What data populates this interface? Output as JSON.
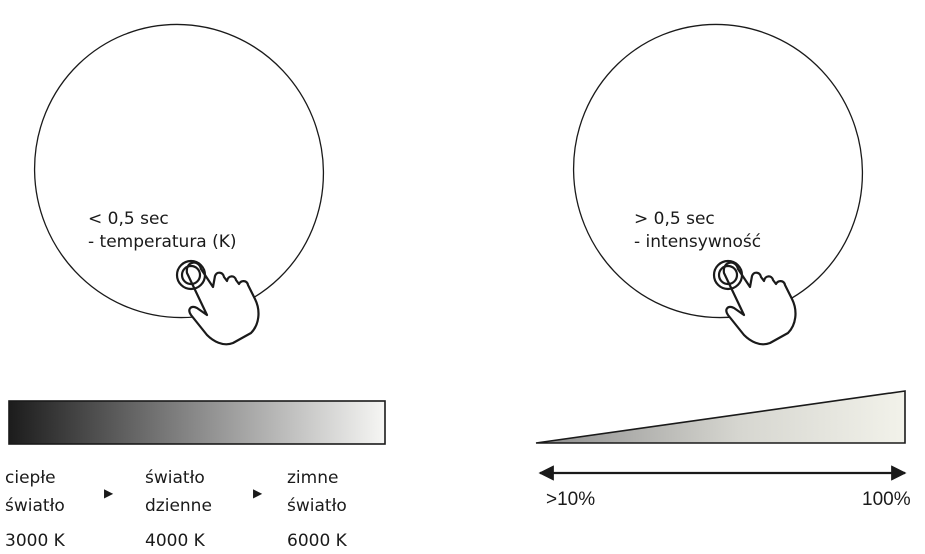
{
  "left_panel": {
    "timing": "< 0,5 sec",
    "function": "- temperatura (K)"
  },
  "right_panel": {
    "timing": "> 0,5 sec",
    "function": "- intensywność"
  },
  "temperature_scale": {
    "gradient_colors": [
      "#1c1c1c",
      "#8a8a8a",
      "#f6f6f4"
    ],
    "labels": [
      {
        "line1": "ciepłe",
        "line2": "światło",
        "kelvin": "3000 K"
      },
      {
        "line1": "światło",
        "line2": "dzienne",
        "kelvin": "4000 K"
      },
      {
        "line1": "zimne",
        "line2": "światło",
        "kelvin": "6000 K"
      }
    ],
    "separator_icon": "triangle-right-icon"
  },
  "intensity_scale": {
    "min_label": ">10%",
    "max_label": "100%",
    "gradient_colors": [
      "#8c8c8c",
      "#f2f2ea"
    ]
  },
  "colors": {
    "stroke": "#1a1a1a",
    "background": "#ffffff"
  }
}
